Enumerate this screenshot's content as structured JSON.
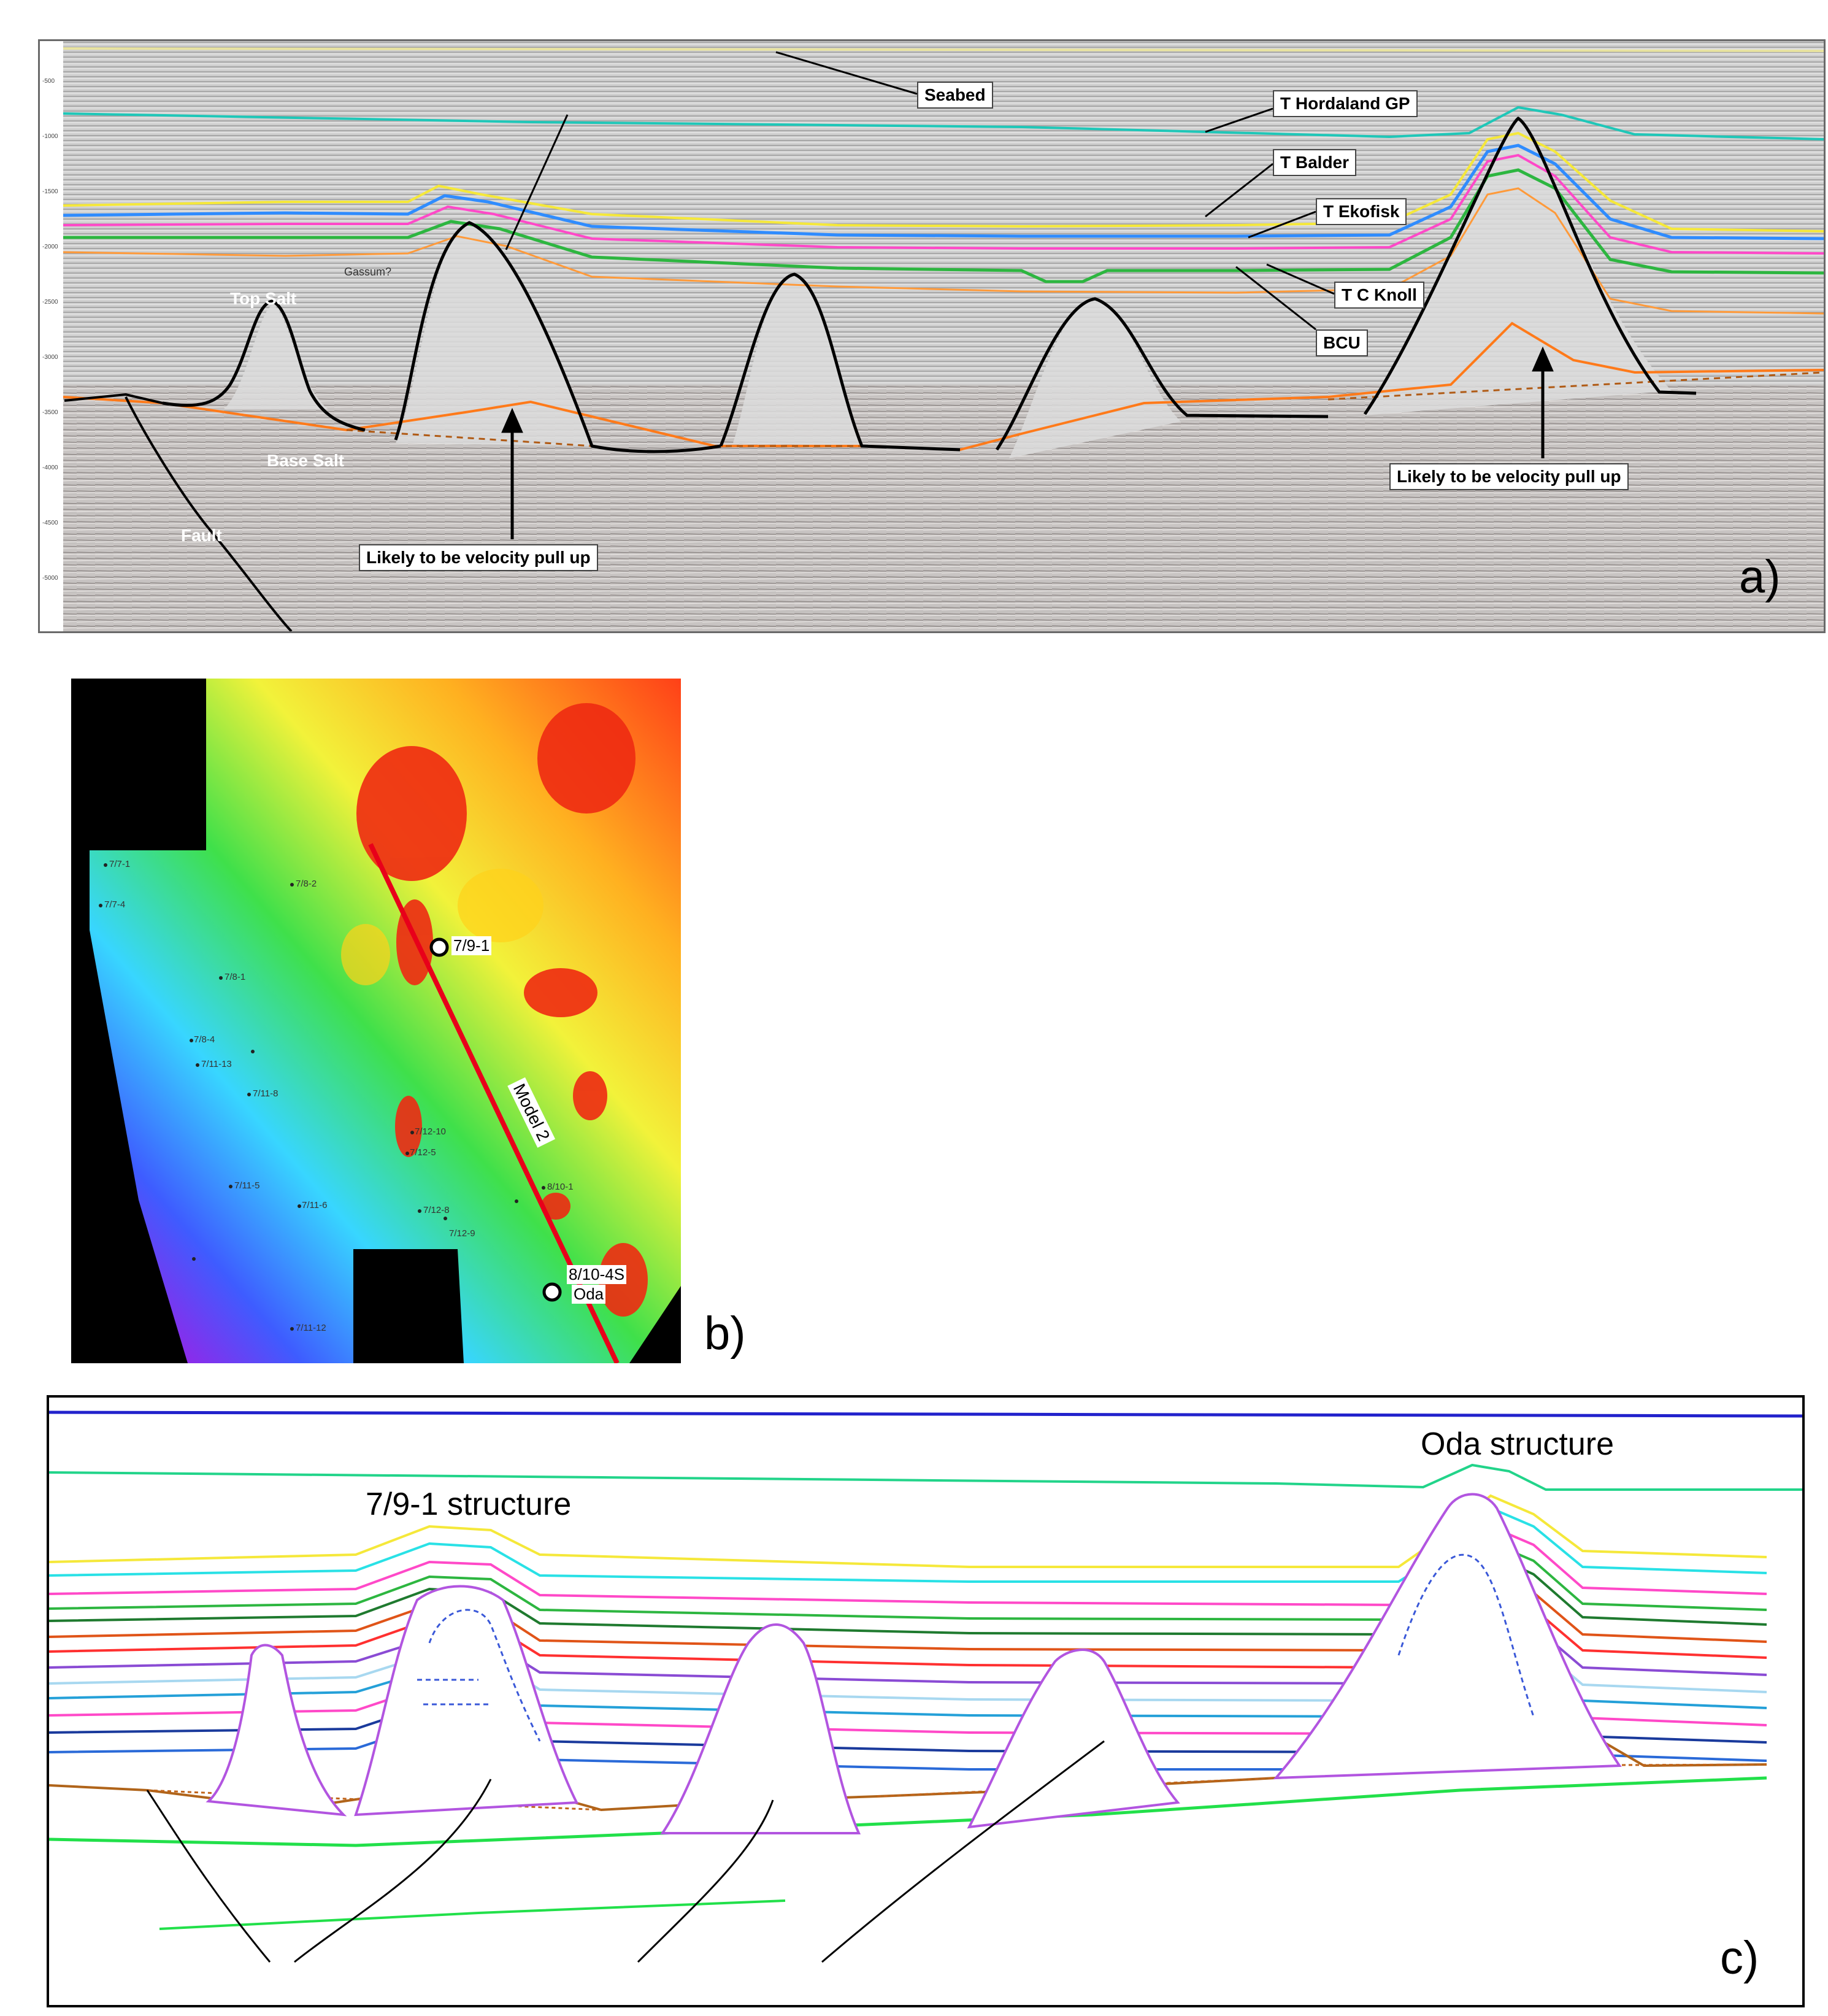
{
  "panel_a": {
    "letter": "a)",
    "labels": {
      "seabed": "Seabed",
      "t_hordaland": "T Hordaland GP",
      "t_balder": "T Balder",
      "t_ekofisk": "T Ekofisk",
      "t_c_knoll": "T C Knoll",
      "bcu": "BCU",
      "top_salt": "Top Salt",
      "base_salt": "Base Salt",
      "fault": "Fault",
      "gassum": "Gassum?",
      "pull_up_left": "Likely to be velocity pull up",
      "pull_up_right": "Likely to be velocity pull up"
    },
    "colors": {
      "hordaland": "#1fc7b8",
      "balder": "#f5e83a",
      "balder2": "#2f8cff",
      "ekofisk": "#ff49c8",
      "knoll": "#2db640",
      "bcu": "#ff9a3a",
      "salt": "#000000",
      "base_salt": "#ff7a1a"
    }
  },
  "panel_b": {
    "letter": "b)",
    "model_label": "Model 2",
    "wells": [
      {
        "name": "7/9-1",
        "major": true
      },
      {
        "name": "8/10-4S",
        "major": true
      },
      {
        "name": "Oda",
        "major": true
      },
      {
        "name": "7/7-1"
      },
      {
        "name": "7/7-4"
      },
      {
        "name": "7/8-2"
      },
      {
        "name": "7/8-1"
      },
      {
        "name": "7/8-4"
      },
      {
        "name": "7/11-13"
      },
      {
        "name": "7/11-8"
      },
      {
        "name": "7/11-5"
      },
      {
        "name": "7/11-6"
      },
      {
        "name": "7/12-10"
      },
      {
        "name": "7/12-5"
      },
      {
        "name": "7/12-8"
      },
      {
        "name": "7/12-9"
      },
      {
        "name": "8/10-1"
      },
      {
        "name": "7/11-12"
      }
    ]
  },
  "panel_c": {
    "letter": "c)",
    "structure_left": "7/9-1 structure",
    "structure_right": "Oda structure"
  }
}
